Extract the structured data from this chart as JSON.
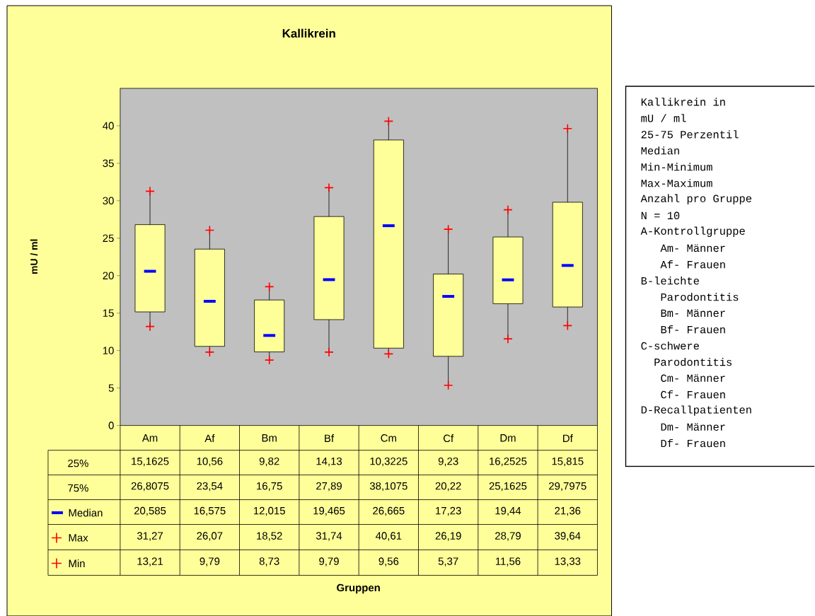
{
  "chart_data": {
    "type": "box",
    "title": "Kallikrein",
    "color": "#ffff99",
    "grid": false,
    "categories": [
      "Am",
      "Af",
      "Bm",
      "Bf",
      "Cm",
      "Cf",
      "Dm",
      "Df"
    ],
    "boxes": [
      {
        "low": 13.21,
        "q1": 15.1625,
        "median": 20.585,
        "q3": 26.8075,
        "high": 31.27
      },
      {
        "low": 9.79,
        "q1": 10.56,
        "median": 16.575,
        "q3": 23.54,
        "high": 26.07
      },
      {
        "low": 8.73,
        "q1": 9.82,
        "median": 12.015,
        "q3": 16.75,
        "high": 18.52
      },
      {
        "low": 9.79,
        "q1": 14.13,
        "median": 19.465,
        "q3": 27.89,
        "high": 31.74
      },
      {
        "low": 9.56,
        "q1": 10.3225,
        "median": 26.665,
        "q3": 38.1075,
        "high": 40.61
      },
      {
        "low": 5.37,
        "q1": 9.23,
        "median": 17.23,
        "q3": 20.22,
        "high": 26.19
      },
      {
        "low": 11.56,
        "q1": 16.2525,
        "median": 19.44,
        "q3": 25.1625,
        "high": 28.79
      },
      {
        "low": 13.33,
        "q1": 15.815,
        "median": 21.36,
        "q3": 29.7975,
        "high": 39.64
      }
    ],
    "value_labels": [
      [
        "15,1625",
        "26,8075",
        "20,585",
        "31,27",
        "13,21"
      ],
      [
        "10,56",
        "23,54",
        "16,575",
        "26,07",
        "9,79"
      ],
      [
        "9,82",
        "16,75",
        "12,015",
        "18,52",
        "8,73"
      ],
      [
        "14,13",
        "27,89",
        "19,465",
        "31,74",
        "9,79"
      ],
      [
        "10,3225",
        "38,1075",
        "26,665",
        "40,61",
        "9,56"
      ],
      [
        "9,23",
        "20,22",
        "17,23",
        "26,19",
        "5,37"
      ],
      [
        "16,2525",
        "25,1625",
        "19,44",
        "28,79",
        "11,56"
      ],
      [
        "15,815",
        "29,7975",
        "21,36",
        "39,64",
        "13,33"
      ]
    ],
    "ylim": [
      0,
      45
    ],
    "yticks": [
      0,
      5,
      10,
      15,
      20,
      25,
      30,
      35,
      40
    ],
    "annotations": [
      "25%",
      "75%",
      "Median",
      "Max",
      "Min",
      "Kallikrein in",
      "mU / ml",
      "25-75 Perzentil",
      "Median",
      "Min-Minimum",
      "Max-Maximum",
      "Anzahl pro Gruppe",
      "N = 10",
      "A-Kontrollgruppe",
      "  Am- Männer",
      "  Af- Frauen",
      "B-leichte",
      "  Parodontitis",
      "  Bm- Männer",
      "  Bf- Frauen",
      "C-schwere",
      " Parodontitis",
      "  Cm- Männer",
      "  Cf- Frauen",
      "D-Recallpatienten",
      "  Dm- Männer",
      "  Df- Frauen",
      "Gruppen",
      "mU / ml"
    ]
  }
}
